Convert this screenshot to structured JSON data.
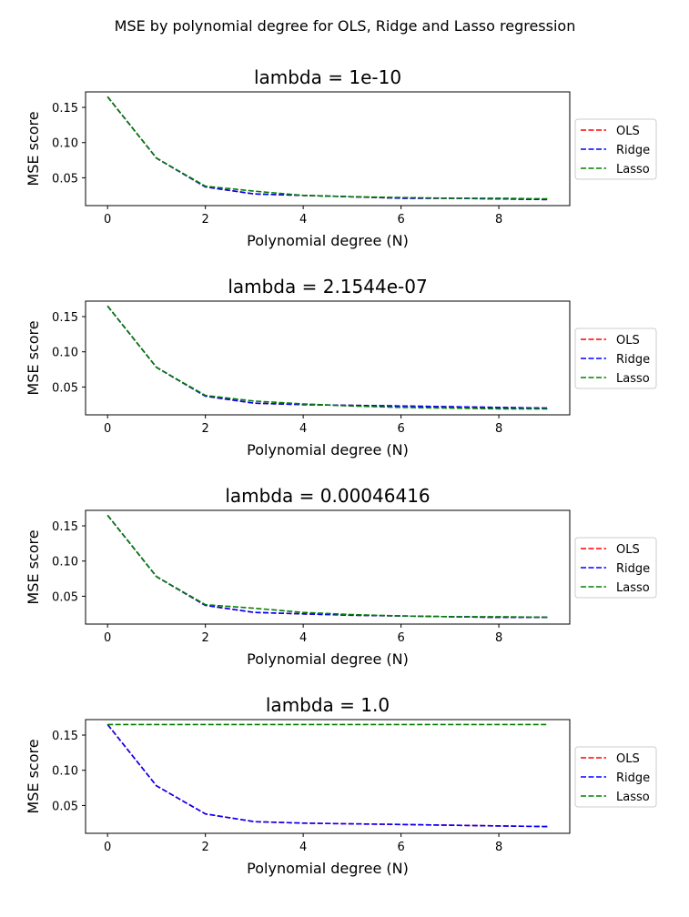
{
  "figure": {
    "suptitle": "MSE by polynomial degree for OLS, Ridge and Lasso regression"
  },
  "chart_data": [
    {
      "type": "line",
      "title": "lambda = 1e-10",
      "xlabel": "Polynomial degree (N)",
      "ylabel": "MSE score",
      "xlim": [
        -0.45,
        9.45
      ],
      "ylim": [
        0.0105,
        0.172
      ],
      "xticks": [
        0,
        2,
        4,
        6,
        8
      ],
      "xtick_labels": [
        "0",
        "2",
        "4",
        "6",
        "8"
      ],
      "yticks": [
        0.05,
        0.1,
        0.15
      ],
      "ytick_labels": [
        "0.05",
        "0.10",
        "0.15"
      ],
      "grid": false,
      "legend_position": "right, outside plot",
      "x": [
        0,
        1,
        2,
        3,
        4,
        5,
        6,
        7,
        8,
        9
      ],
      "series": [
        {
          "name": "OLS",
          "color": "#ff0000",
          "dash": "dashed",
          "values": [
            0.165,
            0.078,
            0.037,
            0.027,
            0.025,
            0.023,
            0.021,
            0.021,
            0.02,
            0.019
          ]
        },
        {
          "name": "Ridge",
          "color": "#0000ff",
          "dash": "dashed",
          "values": [
            0.165,
            0.078,
            0.037,
            0.027,
            0.025,
            0.023,
            0.021,
            0.021,
            0.02,
            0.019
          ]
        },
        {
          "name": "Lasso",
          "color": "#008000",
          "dash": "dashed",
          "values": [
            0.165,
            0.078,
            0.038,
            0.031,
            0.025,
            0.023,
            0.022,
            0.021,
            0.021,
            0.02
          ]
        }
      ]
    },
    {
      "type": "line",
      "title": "lambda = 2.1544e-07",
      "xlabel": "Polynomial degree (N)",
      "ylabel": "MSE score",
      "xlim": [
        -0.45,
        9.45
      ],
      "ylim": [
        0.0105,
        0.172
      ],
      "xticks": [
        0,
        2,
        4,
        6,
        8
      ],
      "xtick_labels": [
        "0",
        "2",
        "4",
        "6",
        "8"
      ],
      "yticks": [
        0.05,
        0.1,
        0.15
      ],
      "ytick_labels": [
        "0.05",
        "0.10",
        "0.15"
      ],
      "grid": false,
      "legend_position": "right, outside plot",
      "x": [
        0,
        1,
        2,
        3,
        4,
        5,
        6,
        7,
        8,
        9
      ],
      "series": [
        {
          "name": "OLS",
          "color": "#ff0000",
          "dash": "dashed",
          "values": [
            0.165,
            0.078,
            0.037,
            0.027,
            0.025,
            0.024,
            0.023,
            0.022,
            0.021,
            0.02
          ]
        },
        {
          "name": "Ridge",
          "color": "#0000ff",
          "dash": "dashed",
          "values": [
            0.165,
            0.078,
            0.037,
            0.027,
            0.025,
            0.024,
            0.023,
            0.022,
            0.021,
            0.02
          ]
        },
        {
          "name": "Lasso",
          "color": "#008000",
          "dash": "dashed",
          "values": [
            0.165,
            0.078,
            0.038,
            0.03,
            0.026,
            0.023,
            0.021,
            0.02,
            0.019,
            0.019
          ]
        }
      ]
    },
    {
      "type": "line",
      "title": "lambda = 0.00046416",
      "xlabel": "Polynomial degree (N)",
      "ylabel": "MSE score",
      "xlim": [
        -0.45,
        9.45
      ],
      "ylim": [
        0.0105,
        0.172
      ],
      "xticks": [
        0,
        2,
        4,
        6,
        8
      ],
      "xtick_labels": [
        "0",
        "2",
        "4",
        "6",
        "8"
      ],
      "yticks": [
        0.05,
        0.1,
        0.15
      ],
      "ytick_labels": [
        "0.05",
        "0.10",
        "0.15"
      ],
      "grid": false,
      "legend_position": "right, outside plot",
      "x": [
        0,
        1,
        2,
        3,
        4,
        5,
        6,
        7,
        8,
        9
      ],
      "series": [
        {
          "name": "OLS",
          "color": "#ff0000",
          "dash": "dashed",
          "values": [
            0.165,
            0.078,
            0.037,
            0.027,
            0.025,
            0.023,
            0.022,
            0.021,
            0.02,
            0.02
          ]
        },
        {
          "name": "Ridge",
          "color": "#0000ff",
          "dash": "dashed",
          "values": [
            0.165,
            0.078,
            0.037,
            0.027,
            0.025,
            0.023,
            0.022,
            0.021,
            0.02,
            0.02
          ]
        },
        {
          "name": "Lasso",
          "color": "#008000",
          "dash": "dashed",
          "values": [
            0.165,
            0.078,
            0.038,
            0.033,
            0.027,
            0.024,
            0.022,
            0.021,
            0.021,
            0.02
          ]
        }
      ]
    },
    {
      "type": "line",
      "title": "lambda = 1.0",
      "xlabel": "Polynomial degree (N)",
      "ylabel": "MSE score",
      "xlim": [
        -0.45,
        9.45
      ],
      "ylim": [
        0.0105,
        0.172
      ],
      "xticks": [
        0,
        2,
        4,
        6,
        8
      ],
      "xtick_labels": [
        "0",
        "2",
        "4",
        "6",
        "8"
      ],
      "yticks": [
        0.05,
        0.1,
        0.15
      ],
      "ytick_labels": [
        "0.05",
        "0.10",
        "0.15"
      ],
      "grid": false,
      "legend_position": "right, outside plot",
      "x": [
        0,
        1,
        2,
        3,
        4,
        5,
        6,
        7,
        8,
        9
      ],
      "series": [
        {
          "name": "OLS",
          "color": "#ff0000",
          "dash": "dashed",
          "values": [
            0.165,
            0.078,
            0.038,
            0.027,
            0.025,
            0.024,
            0.023,
            0.022,
            0.021,
            0.02
          ]
        },
        {
          "name": "Ridge",
          "color": "#0000ff",
          "dash": "dashed",
          "values": [
            0.165,
            0.078,
            0.038,
            0.027,
            0.025,
            0.024,
            0.023,
            0.022,
            0.021,
            0.02
          ]
        },
        {
          "name": "Lasso",
          "color": "#008000",
          "dash": "dashed",
          "values": [
            0.165,
            0.165,
            0.165,
            0.165,
            0.165,
            0.165,
            0.165,
            0.165,
            0.165,
            0.165
          ]
        }
      ]
    }
  ]
}
